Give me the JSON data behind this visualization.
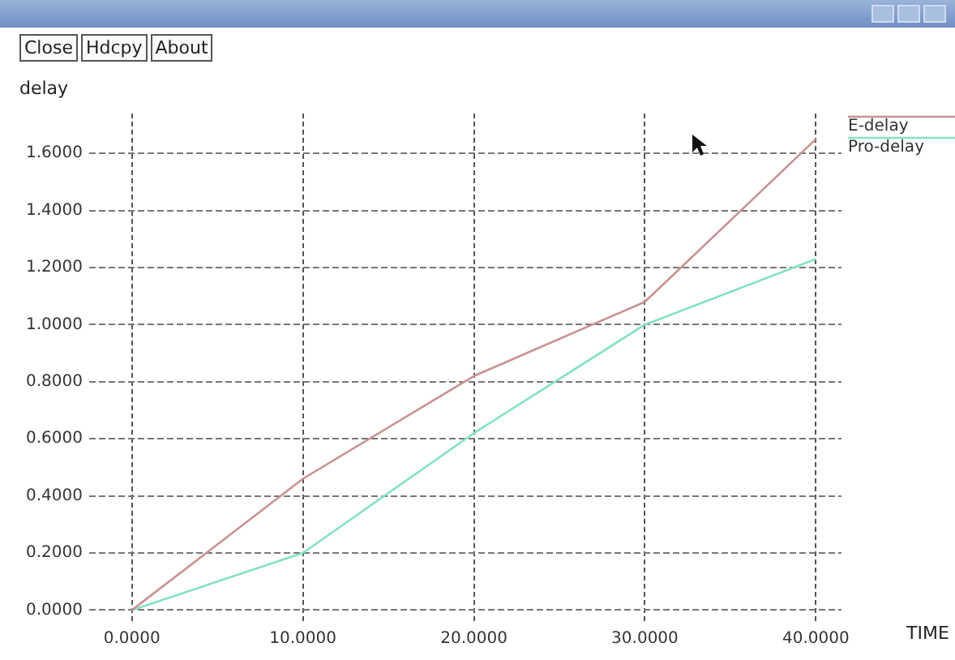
{
  "chart_data": {
    "type": "line",
    "xlabel": "TIME",
    "ylabel": "delay",
    "x": [
      0,
      10,
      20,
      30,
      40
    ],
    "series": [
      {
        "name": "E-delay",
        "color": "#c89292",
        "values": [
          0,
          0.46,
          0.82,
          1.08,
          1.65
        ]
      },
      {
        "name": "Pro-delay",
        "color": "#86e0c4",
        "values": [
          0,
          0.2,
          0.62,
          1.0,
          1.23
        ]
      }
    ],
    "xlim": [
      -2.5,
      41.5
    ],
    "ylim": [
      -0.05,
      1.74
    ],
    "xticks": [
      {
        "value": 0,
        "label": "0.0000"
      },
      {
        "value": 10,
        "label": "10.0000"
      },
      {
        "value": 20,
        "label": "20.0000"
      },
      {
        "value": 30,
        "label": "30.0000"
      },
      {
        "value": 40,
        "label": "40.0000"
      }
    ],
    "yticks": [
      {
        "value": 0,
        "label": "0.0000"
      },
      {
        "value": 0.2,
        "label": "0.2000"
      },
      {
        "value": 0.4,
        "label": "0.4000"
      },
      {
        "value": 0.6,
        "label": "0.6000"
      },
      {
        "value": 0.8,
        "label": "0.8000"
      },
      {
        "value": 1.0,
        "label": "1.0000"
      },
      {
        "value": 1.2,
        "label": "1.2000"
      },
      {
        "value": 1.4,
        "label": "1.4000"
      },
      {
        "value": 1.6,
        "label": "1.6000"
      }
    ],
    "grid": true,
    "legend": "top right",
    "marker": "none",
    "line_style": "solid",
    "annotations": [
      "Close",
      "Hdcpy",
      "About"
    ]
  }
}
